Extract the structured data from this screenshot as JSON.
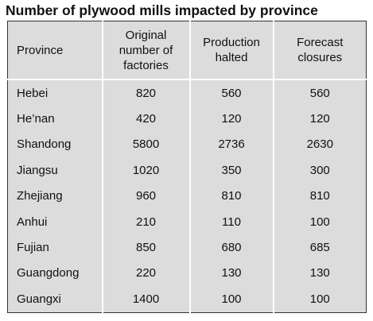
{
  "title": "Number of plywood mills impacted by province",
  "table": {
    "header": [
      "Province",
      "Original number of factories",
      "Production halted",
      "Forecast closures"
    ],
    "rows": [
      [
        "Hebei",
        "820",
        "560",
        "560"
      ],
      [
        "He’nan",
        "420",
        "120",
        "120"
      ],
      [
        "Shandong",
        "5800",
        "2736",
        "2630"
      ],
      [
        "Jiangsu",
        "1020",
        "350",
        "300"
      ],
      [
        "Zhejiang",
        "960",
        "810",
        "810"
      ],
      [
        "Anhui",
        "210",
        "110",
        "100"
      ],
      [
        "Fujian",
        "850",
        "680",
        "685"
      ],
      [
        "Guangdong",
        "220",
        "130",
        "130"
      ],
      [
        "Guangxi",
        "1400",
        "100",
        "100"
      ]
    ]
  }
}
